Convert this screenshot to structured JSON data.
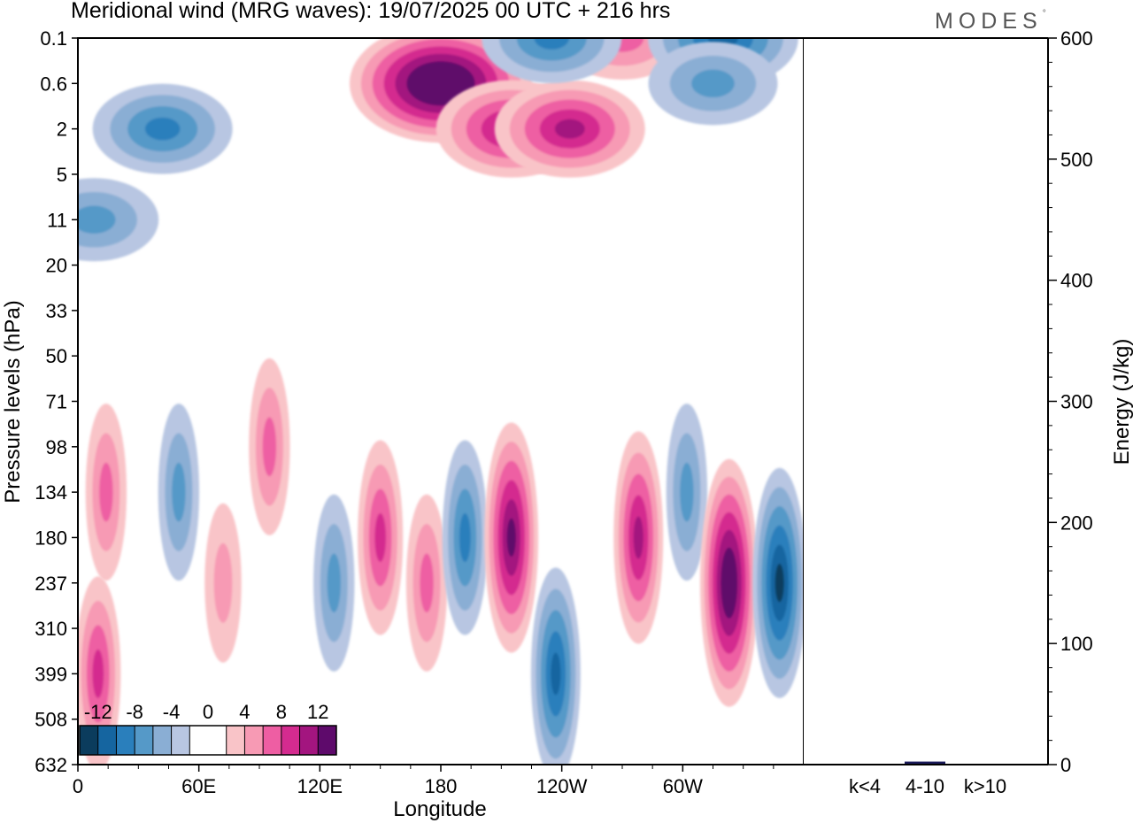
{
  "title": "Meridional wind (MRG waves):  19/07/2025  00 UTC  + 216 hrs",
  "logo": "MODES",
  "logo_mark": "°",
  "chart_data": [
    {
      "type": "heatmap",
      "title": "Meridional wind (MRG waves)",
      "xlabel": "Longitude",
      "ylabel": "Pressure levels (hPa)",
      "x_ticks": [
        "0",
        "60E",
        "120E",
        "180",
        "120W",
        "60W"
      ],
      "x_tick_values": [
        0,
        60,
        120,
        180,
        240,
        300
      ],
      "xlim": [
        0,
        360
      ],
      "y_ticks": [
        "0.1",
        "0.6",
        "2",
        "5",
        "11",
        "20",
        "33",
        "50",
        "71",
        "98",
        "134",
        "180",
        "237",
        "310",
        "399",
        "508",
        "632"
      ],
      "colorbar": {
        "labels": [
          "-12",
          "-8",
          "-4",
          "0",
          "4",
          "8",
          "12"
        ],
        "label_values": [
          -12,
          -8,
          -4,
          0,
          4,
          8,
          12
        ],
        "levels": [
          -14,
          -12,
          -10,
          -8,
          -6,
          -4,
          -2,
          0,
          2,
          4,
          6,
          8,
          10,
          12,
          14
        ],
        "colors": [
          "#0b3c5d",
          "#1565a0",
          "#2a7fbc",
          "#5599c8",
          "#8aaed4",
          "#b8c6e2",
          "#ffffff",
          "#ffffff",
          "#f9c4c8",
          "#f79ab4",
          "#ee5ea3",
          "#d42b8f",
          "#a3157f",
          "#5e0a6b"
        ]
      },
      "features": [
        {
          "lon": 180,
          "level": "0.6",
          "value": 16,
          "sign": "positive",
          "note": "strongest maximum, upper levels"
        },
        {
          "lon": 215,
          "level": "2",
          "value": 10,
          "sign": "positive"
        },
        {
          "lon": 244,
          "level": "2",
          "value": 10,
          "sign": "positive"
        },
        {
          "lon": 270,
          "level": "0.1",
          "value": 6,
          "sign": "positive"
        },
        {
          "lon": 42,
          "level": "2",
          "value": -8,
          "sign": "negative"
        },
        {
          "lon": 235,
          "level": "0.1",
          "value": -8,
          "sign": "negative"
        },
        {
          "lon": 320,
          "level": "0.1",
          "value": -10,
          "sign": "negative"
        },
        {
          "lon": 315,
          "level": "0.6",
          "value": -6,
          "sign": "negative"
        },
        {
          "lon": 8,
          "level": "11",
          "value": -6,
          "sign": "negative"
        },
        {
          "lon": 14,
          "level": "134",
          "value": 6,
          "sign": "positive"
        },
        {
          "lon": 50,
          "level": "134",
          "value": -6,
          "sign": "negative"
        },
        {
          "lon": 95,
          "level": "98",
          "value": 6,
          "sign": "positive"
        },
        {
          "lon": 127,
          "level": "237",
          "value": -6,
          "sign": "negative"
        },
        {
          "lon": 150,
          "level": "180",
          "value": 8,
          "sign": "positive"
        },
        {
          "lon": 173,
          "level": "237",
          "value": 6,
          "sign": "positive"
        },
        {
          "lon": 192,
          "level": "180",
          "value": -8,
          "sign": "negative"
        },
        {
          "lon": 215,
          "level": "180",
          "value": 12,
          "sign": "positive"
        },
        {
          "lon": 237,
          "level": "399",
          "value": -10,
          "sign": "negative"
        },
        {
          "lon": 278,
          "level": "180",
          "value": 10,
          "sign": "positive"
        },
        {
          "lon": 302,
          "level": "134",
          "value": -6,
          "sign": "negative"
        },
        {
          "lon": 323,
          "level": "237",
          "value": 14,
          "sign": "positive"
        },
        {
          "lon": 348,
          "level": "237",
          "value": -12,
          "sign": "negative"
        },
        {
          "lon": 10,
          "level": "399",
          "value": 8,
          "sign": "positive"
        },
        {
          "lon": 72,
          "level": "237",
          "value": 4,
          "sign": "positive"
        }
      ]
    },
    {
      "type": "bar",
      "title": "",
      "categories": [
        "k<4",
        "4-10",
        "k>10"
      ],
      "values": [
        0.5,
        2.5,
        0.2
      ],
      "ylabel": "Energy (J/kg)",
      "ylim": [
        0,
        600
      ],
      "y_ticks": [
        "0",
        "100",
        "200",
        "300",
        "400",
        "500",
        "600"
      ],
      "y_tick_values": [
        0,
        100,
        200,
        300,
        400,
        500,
        600
      ],
      "bar_color": "#1a1a5a"
    }
  ]
}
